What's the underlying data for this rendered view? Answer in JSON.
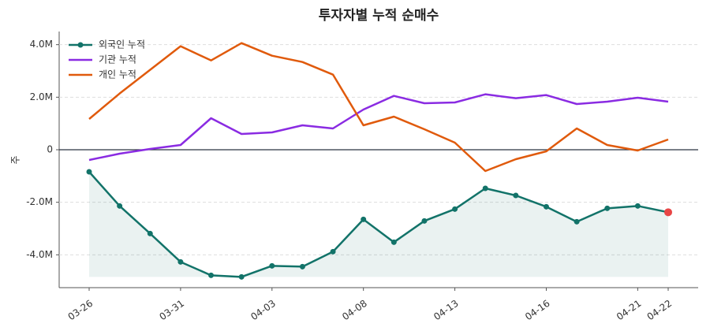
{
  "chart_data": {
    "type": "line",
    "title": "투자자별 누적 순매수",
    "y_label": "주",
    "categories": [
      "03-26",
      null,
      null,
      "03-31",
      null,
      null,
      "04-03",
      null,
      null,
      "04-08",
      null,
      null,
      "04-13",
      null,
      null,
      "04-16",
      null,
      null,
      "04-21",
      "04-22"
    ],
    "series": [
      {
        "name": "외국인 누적",
        "color": "#127369",
        "markers": true,
        "fill": true,
        "last_point_color": "#e84545",
        "values": [
          -840000,
          -2140000,
          -3190000,
          -4270000,
          -4780000,
          -4840000,
          -4420000,
          -4450000,
          -3880000,
          -2650000,
          -3520000,
          -2710000,
          -2260000,
          -1470000,
          -1740000,
          -2170000,
          -2740000,
          -2230000,
          -2140000,
          -2380000
        ]
      },
      {
        "name": "기관 누적",
        "color": "#8a2be2",
        "markers": false,
        "fill": false,
        "values": [
          -390000,
          -150000,
          30000,
          180000,
          1200000,
          600000,
          660000,
          930000,
          810000,
          1530000,
          2050000,
          1770000,
          1800000,
          2110000,
          1960000,
          2080000,
          1740000,
          1830000,
          1980000,
          1830000
        ]
      },
      {
        "name": "개인 누적",
        "color": "#e05a0c",
        "markers": false,
        "fill": false,
        "values": [
          1170000,
          2140000,
          3040000,
          3940000,
          3400000,
          4060000,
          3580000,
          3340000,
          2860000,
          930000,
          1260000,
          780000,
          270000,
          -810000,
          -360000,
          -60000,
          810000,
          180000,
          -30000,
          390000
        ]
      }
    ],
    "ylim": [
      -5250000,
      4500000
    ],
    "yticks": [
      {
        "value": -4000000,
        "label": "-4.0M"
      },
      {
        "value": -2000000,
        "label": "-2.0M"
      },
      0,
      {
        "value": 2000000,
        "label": "2.0M"
      },
      {
        "value": 4000000,
        "label": "4.0M"
      }
    ],
    "grid": true,
    "zero_line": true,
    "legend": "upper-left"
  }
}
